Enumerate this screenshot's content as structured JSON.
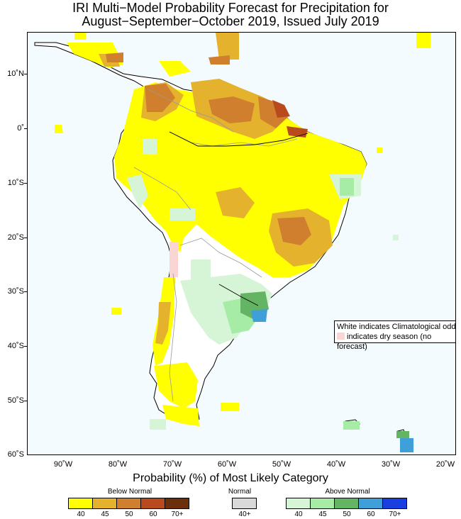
{
  "title_line1": "IRI Multi−Model Probability Forecast for Precipitation for",
  "title_line2": "August−September−October 2019, Issued July 2019",
  "lat_labels": [
    "10˚N",
    "0˚",
    "10˚S",
    "20˚S",
    "30˚S",
    "40˚S",
    "50˚S",
    "60˚S"
  ],
  "lon_labels": [
    "90˚W",
    "80˚W",
    "70˚W",
    "60˚W",
    "50˚W",
    "40˚W",
    "30˚W",
    "20˚W"
  ],
  "note": {
    "line1": "White indicates Climatological odds",
    "line2": "indicates dry season (no forecast)",
    "dry_color": "#fbd4d4"
  },
  "legend": {
    "title": "Probability (%) of Most Likely Category",
    "below": {
      "label": "Below Normal",
      "colors": [
        "#ffff00",
        "#e5b22e",
        "#cf7f2e",
        "#b84a1e",
        "#6b2f0c"
      ],
      "values": [
        "40",
        "45",
        "50",
        "60",
        "70+"
      ]
    },
    "normal": {
      "label": "Normal",
      "colors": [
        "#d9d9d9"
      ],
      "values": [
        "40+"
      ]
    },
    "above": {
      "label": "Above Normal",
      "colors": [
        "#d6f5d6",
        "#a6eca6",
        "#63b563",
        "#3f9fd9",
        "#1a3fe0"
      ],
      "values": [
        "40",
        "45",
        "50",
        "60",
        "70+"
      ]
    }
  },
  "colors": {
    "ocean": "#f4fbfe",
    "land": "#ffffff"
  }
}
